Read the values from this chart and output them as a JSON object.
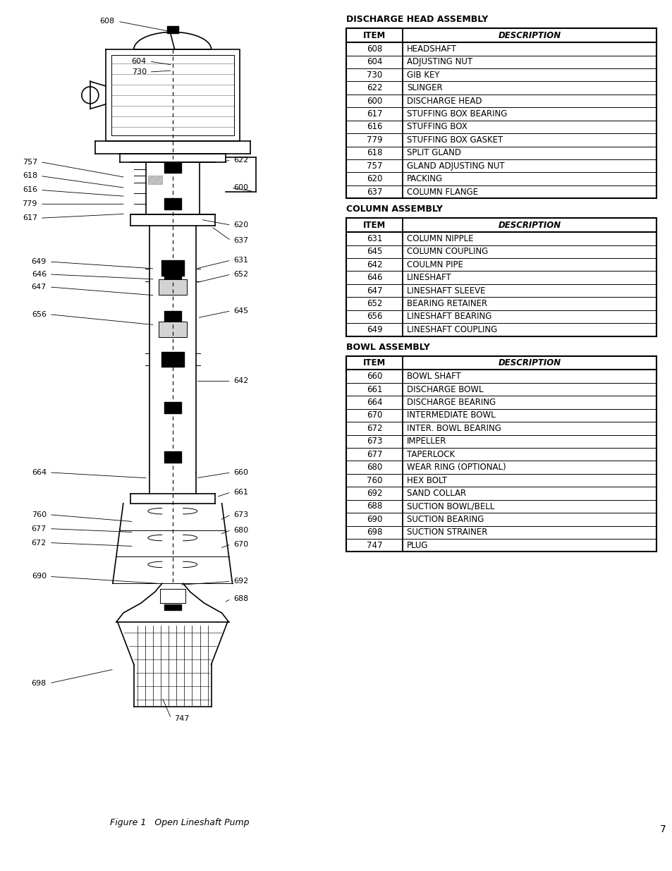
{
  "page_bg": "#ffffff",
  "page_number": "7",
  "figure_caption": "Figure 1   Open Lineshaft Pump",
  "discharge_head_title": "DISCHARGE HEAD ASSEMBLY",
  "discharge_head_cols": [
    "ITEM",
    "DESCRIPTION"
  ],
  "discharge_head_rows": [
    [
      "608",
      "HEADSHAFT"
    ],
    [
      "604",
      "ADJUSTING NUT"
    ],
    [
      "730",
      "GIB KEY"
    ],
    [
      "622",
      "SLINGER"
    ],
    [
      "600",
      "DISCHARGE HEAD"
    ],
    [
      "617",
      "STUFFING BOX BEARING"
    ],
    [
      "616",
      "STUFFING BOX"
    ],
    [
      "779",
      "STUFFING BOX GASKET"
    ],
    [
      "618",
      "SPLIT GLAND"
    ],
    [
      "757",
      "GLAND ADJUSTING NUT"
    ],
    [
      "620",
      "PACKING"
    ],
    [
      "637",
      "COLUMN FLANGE"
    ]
  ],
  "column_assembly_title": "COLUMN ASSEMBLY",
  "column_assembly_cols": [
    "ITEM",
    "DESCRIPTION"
  ],
  "column_assembly_rows": [
    [
      "631",
      "COLUMN NIPPLE"
    ],
    [
      "645",
      "COLUMN COUPLING"
    ],
    [
      "642",
      "COULMN PIPE"
    ],
    [
      "646",
      "LINESHAFT"
    ],
    [
      "647",
      "LINESHAFT SLEEVE"
    ],
    [
      "652",
      "BEARING RETAINER"
    ],
    [
      "656",
      "LINESHAFT BEARING"
    ],
    [
      "649",
      "LINESHAFT COUPLING"
    ]
  ],
  "bowl_assembly_title": "BOWL ASSEMBLY",
  "bowl_assembly_cols": [
    "ITEM",
    "DESCRIPTION"
  ],
  "bowl_assembly_rows": [
    [
      "660",
      "BOWL SHAFT"
    ],
    [
      "661",
      "DISCHARGE BOWL"
    ],
    [
      "664",
      "DISCHARGE BEARING"
    ],
    [
      "670",
      "INTERMEDIATE BOWL"
    ],
    [
      "672",
      "INTER. BOWL BEARING"
    ],
    [
      "673",
      "IMPELLER"
    ],
    [
      "677",
      "TAPERLOCK"
    ],
    [
      "680",
      "WEAR RING (OPTIONAL)"
    ],
    [
      "760",
      "HEX BOLT"
    ],
    [
      "692",
      "SAND COLLAR"
    ],
    [
      "688",
      "SUCTION BOWL/BELL"
    ],
    [
      "690",
      "SUCTION BEARING"
    ],
    [
      "698",
      "SUCTION STRAINER"
    ],
    [
      "747",
      "PLUG"
    ]
  ]
}
